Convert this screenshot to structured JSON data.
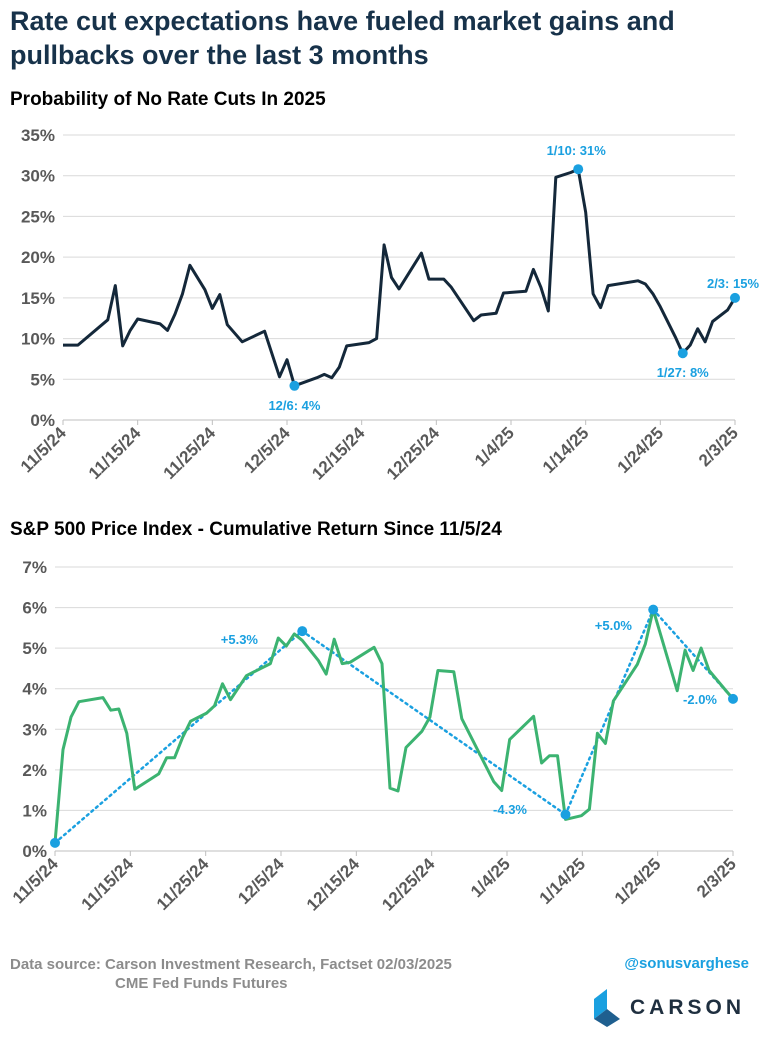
{
  "header": {
    "title": "Rate cut expectations have fueled market gains and pullbacks over the last 3 months"
  },
  "colors": {
    "title": "#17324a",
    "line1": "#14283a",
    "line2": "#3cb371",
    "accent": "#1aa0e0",
    "grid": "#d9d9d9",
    "tick": "#595959"
  },
  "chart_data": [
    {
      "type": "line",
      "title": "Probability of No Rate Cuts In 2025",
      "xlabel": "",
      "ylabel": "",
      "x_tick_labels": [
        "11/5/24",
        "11/15/24",
        "11/25/24",
        "12/5/24",
        "12/15/24",
        "12/25/24",
        "1/4/25",
        "1/14/25",
        "1/24/25",
        "2/3/25"
      ],
      "y_tick_labels": [
        "0%",
        "5%",
        "10%",
        "15%",
        "20%",
        "25%",
        "30%",
        "35%"
      ],
      "ylim": [
        0,
        35
      ],
      "grid": true,
      "legend": "none",
      "series": [
        {
          "values": [
            [
              0,
              9.2
            ],
            [
              2,
              9.2
            ],
            [
              6,
              12.3
            ],
            [
              7,
              16.5
            ],
            [
              8,
              9.1
            ],
            [
              9,
              11
            ],
            [
              10,
              12.4
            ],
            [
              13,
              11.8
            ],
            [
              14,
              11.0
            ],
            [
              15,
              13
            ],
            [
              16,
              15.5
            ],
            [
              17,
              19
            ],
            [
              19,
              16
            ],
            [
              20,
              13.7
            ],
            [
              21,
              15.4
            ],
            [
              22,
              11.7
            ],
            [
              24,
              9.6
            ],
            [
              27,
              10.9
            ],
            [
              29,
              5.3
            ],
            [
              30,
              7.4
            ],
            [
              31,
              4.2
            ],
            [
              34,
              5.2
            ],
            [
              35,
              5.6
            ],
            [
              36,
              5.2
            ],
            [
              37,
              6.5
            ],
            [
              38,
              9.1
            ],
            [
              41,
              9.5
            ],
            [
              42,
              10
            ],
            [
              43,
              21.5
            ],
            [
              44,
              17.5
            ],
            [
              45,
              16.1
            ],
            [
              48,
              20.5
            ],
            [
              49,
              17.3
            ],
            [
              51,
              17.3
            ],
            [
              52,
              16.3
            ],
            [
              55,
              12.2
            ],
            [
              56,
              12.9
            ],
            [
              58,
              13.1
            ],
            [
              59,
              15.6
            ],
            [
              62,
              15.8
            ],
            [
              63,
              18.5
            ],
            [
              64,
              16.3
            ],
            [
              65,
              13.4
            ],
            [
              66,
              29.8
            ],
            [
              68,
              30.4
            ],
            [
              69,
              30.8
            ],
            [
              70,
              25.5
            ],
            [
              71,
              15.5
            ],
            [
              72,
              13.8
            ],
            [
              73,
              16.5
            ],
            [
              77,
              17.1
            ],
            [
              78,
              16.7
            ],
            [
              79,
              15.5
            ],
            [
              80,
              13.9
            ],
            [
              82,
              10.2
            ],
            [
              83,
              8.2
            ],
            [
              84,
              9.2
            ],
            [
              85,
              11.2
            ],
            [
              86,
              9.6
            ],
            [
              87,
              12.1
            ],
            [
              89,
              13.5
            ],
            [
              90,
              15.0
            ]
          ]
        }
      ],
      "annotations": [
        {
          "x": 31,
          "y": 4.2,
          "label": "12/6: 4%"
        },
        {
          "x": 69,
          "y": 30.8,
          "label": "1/10: 31%"
        },
        {
          "x": 83,
          "y": 8.2,
          "label": "1/27: 8%"
        },
        {
          "x": 90,
          "y": 15.0,
          "label": "2/3: 15%"
        }
      ]
    },
    {
      "type": "line",
      "title": "S&P 500 Price Index - Cumulative Return Since 11/5/24",
      "xlabel": "",
      "ylabel": "",
      "x_tick_labels": [
        "11/5/24",
        "11/15/24",
        "11/25/24",
        "12/5/24",
        "12/15/24",
        "12/25/24",
        "1/4/25",
        "1/14/25",
        "1/24/25",
        "2/3/25"
      ],
      "y_tick_labels": [
        "0%",
        "1%",
        "2%",
        "3%",
        "4%",
        "5%",
        "6%",
        "7%"
      ],
      "ylim": [
        0,
        7
      ],
      "grid": true,
      "legend": "none",
      "series": [
        {
          "values": [
            [
              0,
              0.2
            ],
            [
              1,
              2.5
            ],
            [
              2,
              3.3
            ],
            [
              3,
              3.68
            ],
            [
              6,
              3.78
            ],
            [
              7,
              3.47
            ],
            [
              8,
              3.5
            ],
            [
              9,
              2.9
            ],
            [
              10,
              1.52
            ],
            [
              13,
              1.9
            ],
            [
              14,
              2.3
            ],
            [
              15,
              2.3
            ],
            [
              16,
              2.8
            ],
            [
              17,
              3.2
            ],
            [
              19,
              3.4
            ],
            [
              20,
              3.58
            ],
            [
              21,
              4.12
            ],
            [
              22,
              3.73
            ],
            [
              24,
              4.32
            ],
            [
              27,
              4.62
            ],
            [
              28,
              5.25
            ],
            [
              29,
              5.05
            ],
            [
              30,
              5.35
            ],
            [
              31,
              5.19
            ],
            [
              33,
              4.7
            ],
            [
              34,
              4.36
            ],
            [
              35,
              5.22
            ],
            [
              36,
              4.62
            ],
            [
              37,
              4.65
            ],
            [
              40,
              5.02
            ],
            [
              41,
              4.62
            ],
            [
              42,
              1.55
            ],
            [
              43,
              1.48
            ],
            [
              44,
              2.55
            ],
            [
              46,
              2.95
            ],
            [
              47,
              3.3
            ],
            [
              48,
              4.45
            ],
            [
              50,
              4.42
            ],
            [
              51,
              3.26
            ],
            [
              55,
              1.71
            ],
            [
              56,
              1.49
            ],
            [
              57,
              2.75
            ],
            [
              60,
              3.32
            ],
            [
              61,
              2.17
            ],
            [
              62,
              2.35
            ],
            [
              63,
              2.35
            ],
            [
              64,
              0.78
            ],
            [
              66,
              0.87
            ],
            [
              67,
              1.03
            ],
            [
              68,
              2.9
            ],
            [
              69,
              2.65
            ],
            [
              70,
              3.7
            ],
            [
              73,
              4.6
            ],
            [
              74,
              5.1
            ],
            [
              75,
              5.95
            ],
            [
              78,
              3.95
            ],
            [
              79,
              4.95
            ],
            [
              80,
              4.45
            ],
            [
              81,
              5.0
            ],
            [
              82,
              4.45
            ],
            [
              84,
              3.98
            ],
            [
              85,
              3.75
            ]
          ]
        }
      ],
      "trendlines": [
        {
          "from": [
            0,
            0.2
          ],
          "to": [
            31,
            5.42
          ]
        },
        {
          "from": [
            31,
            5.42
          ],
          "to": [
            64,
            0.9
          ]
        },
        {
          "from": [
            64,
            0.9
          ],
          "to": [
            75,
            5.95
          ]
        },
        {
          "from": [
            75,
            5.95
          ],
          "to": [
            85,
            3.75
          ]
        }
      ],
      "markers": [
        [
          0,
          0.2
        ],
        [
          31,
          5.42
        ],
        [
          64,
          0.9
        ],
        [
          75,
          5.95
        ],
        [
          85,
          3.75
        ]
      ],
      "annotations": [
        {
          "label": "+5.3%"
        },
        {
          "label": "-4.3%"
        },
        {
          "label": "+5.0%"
        },
        {
          "label": "-2.0%"
        }
      ]
    }
  ],
  "footer": {
    "source_line1": "Data source: Carson Investment Research, Factset   02/03/2025",
    "source_line2": "CME Fed Funds Futures",
    "handle": "@sonusvarghese",
    "brand": "CARSON"
  }
}
